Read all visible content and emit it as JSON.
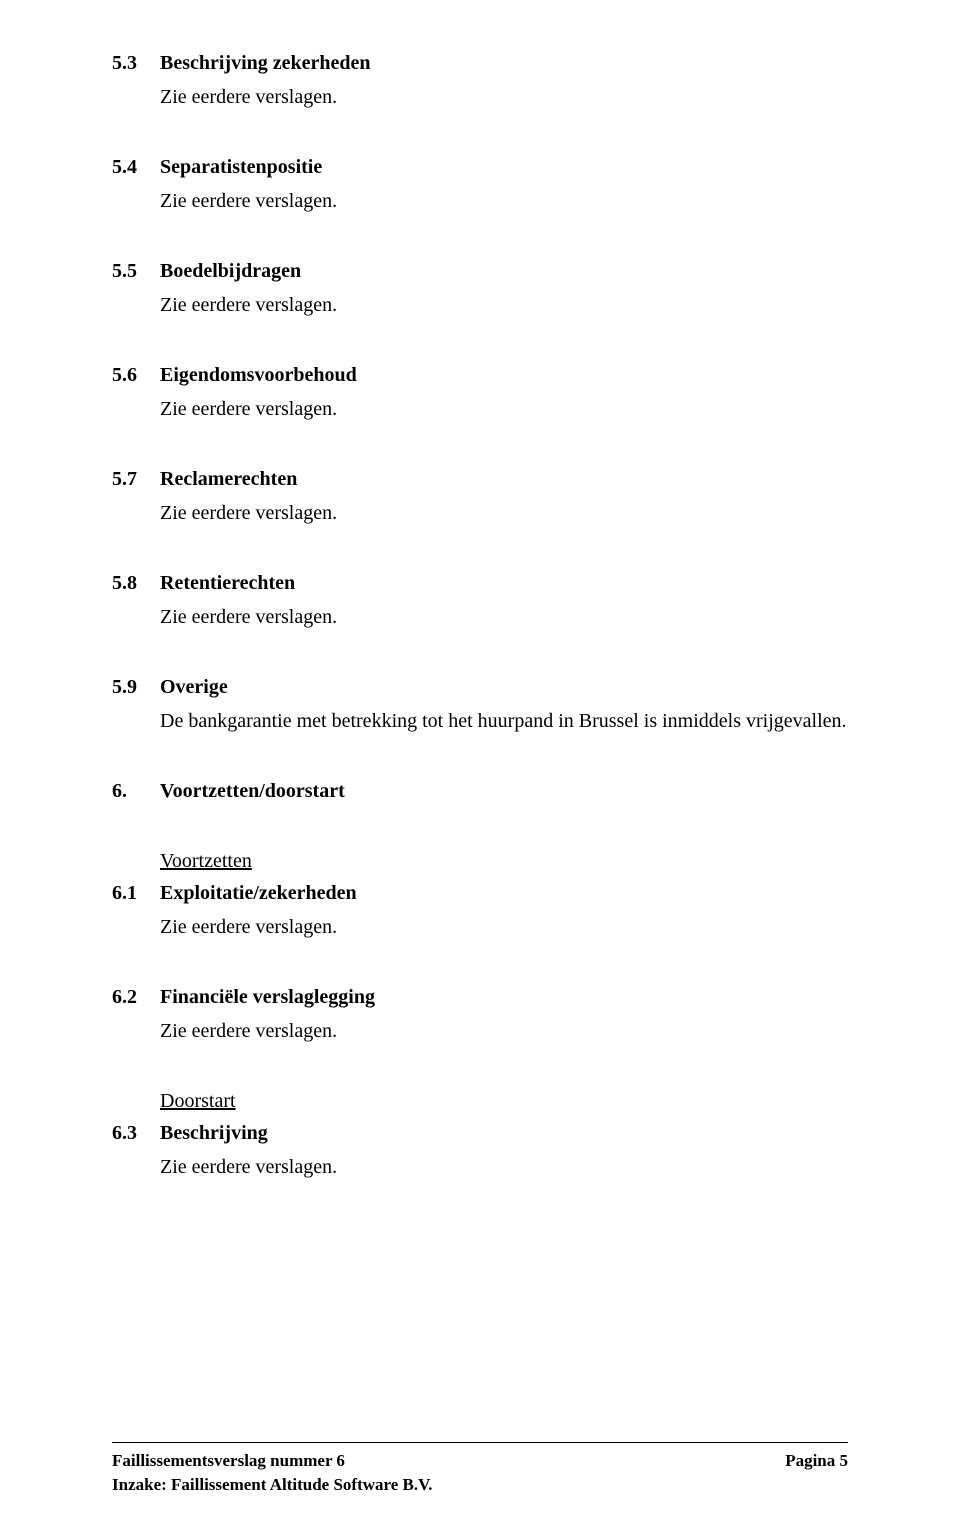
{
  "sections": [
    {
      "num": "5.3",
      "title": "Beschrijving zekerheden",
      "content": "Zie eerdere verslagen."
    },
    {
      "num": "5.4",
      "title": "Separatistenpositie",
      "content": "Zie eerdere verslagen."
    },
    {
      "num": "5.5",
      "title": "Boedelbijdragen",
      "content": "Zie eerdere verslagen."
    },
    {
      "num": "5.6",
      "title": "Eigendomsvoorbehoud",
      "content": "Zie eerdere verslagen."
    },
    {
      "num": "5.7",
      "title": "Reclamerechten",
      "content": "Zie eerdere verslagen."
    },
    {
      "num": "5.8",
      "title": "Retentierechten",
      "content": "Zie eerdere verslagen."
    },
    {
      "num": "5.9",
      "title": "Overige",
      "content": "De bankgarantie met betrekking tot het huurpand in Brussel is inmiddels vrijgevallen."
    }
  ],
  "heading6": {
    "num": "6.",
    "title": "Voortzetten/doorstart"
  },
  "sub_voortzetten": "Voortzetten",
  "sections6a": [
    {
      "num": "6.1",
      "title": "Exploitatie/zekerheden",
      "content": "Zie eerdere verslagen."
    },
    {
      "num": "6.2",
      "title": "Financiële verslaglegging",
      "content": "Zie eerdere verslagen."
    }
  ],
  "sub_doorstart": "Doorstart",
  "sections6b": [
    {
      "num": "6.3",
      "title": "Beschrijving",
      "content": "Zie eerdere verslagen."
    }
  ],
  "footer": {
    "line1": "Faillissementsverslag nummer 6",
    "line2": "Inzake: Faillissement Altitude Software B.V.",
    "page": "Pagina 5"
  }
}
